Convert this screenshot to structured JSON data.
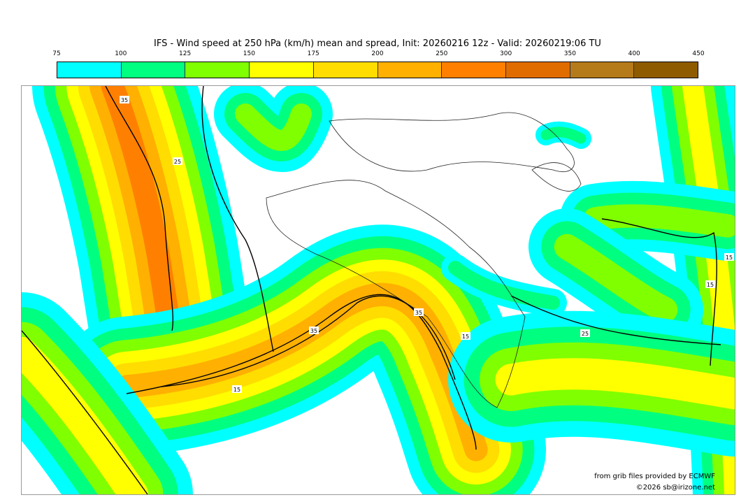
{
  "title": "IFS - Wind speed at 250 hPa (km/h) mean and spread, Init: 20260216 12z - Valid: 20260219:06 TU",
  "colorbar": {
    "ticks": [
      "75",
      "100",
      "125",
      "150",
      "175",
      "200",
      "250",
      "300",
      "350",
      "400",
      "450"
    ],
    "colors": [
      "#00ffff",
      "#00ff80",
      "#80ff00",
      "#ffff00",
      "#ffdd00",
      "#ffb000",
      "#ff8000",
      "#e06c00",
      "#b57a1a",
      "#8f5b00"
    ]
  },
  "contour_labels": [
    "35",
    "25",
    "35",
    "35",
    "15",
    "15",
    "25",
    "15",
    "15"
  ],
  "credits": {
    "source": "from grib files provided by ECMWF",
    "copyright": "©2026 sb@irizone.net"
  }
}
